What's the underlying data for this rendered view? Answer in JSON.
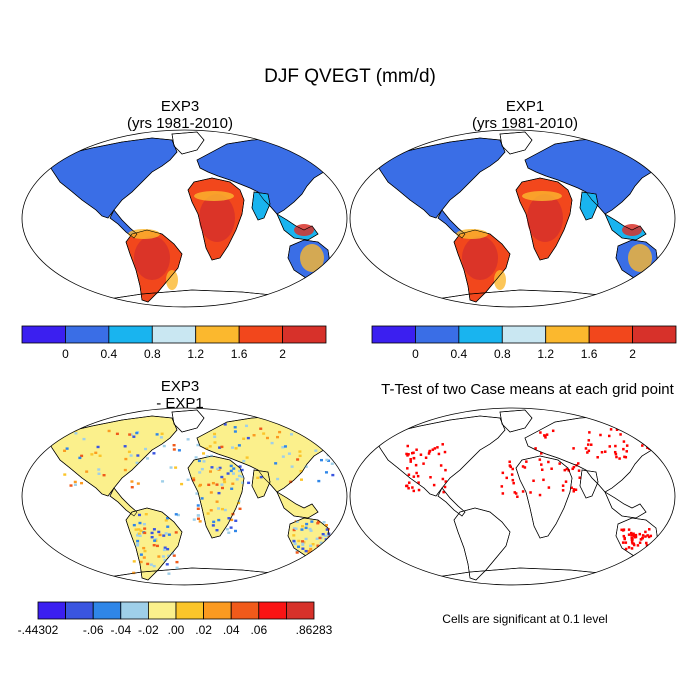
{
  "figure": {
    "title": "DJF QVEGT (mm/d)"
  },
  "panels": [
    {
      "id": "exp3",
      "title_line1": "EXP3",
      "title_line2": "(yrs 1981-2010)"
    },
    {
      "id": "exp1",
      "title_line1": "EXP1",
      "title_line2": "(yrs 1981-2010)"
    },
    {
      "id": "diff",
      "title_line1": "EXP3",
      "title_line2": " - EXP1"
    },
    {
      "id": "ttest",
      "title_line1": "T-Test of two Case means at each grid point",
      "title_line2": ""
    }
  ],
  "colorbars": {
    "mean": {
      "colors": [
        "#3b1ff0",
        "#3a6ee6",
        "#19b4ef",
        "#c9e7f2",
        "#fbb82e",
        "#f2471c",
        "#d7312a"
      ],
      "labels": [
        "0",
        "0.4",
        "0.8",
        "1.2",
        "1.6",
        "2"
      ]
    },
    "diff": {
      "colors": [
        "#3b1ff0",
        "#3a55e0",
        "#2f86e8",
        "#9fcfe9",
        "#fbf08c",
        "#fbc52a",
        "#fb9a20",
        "#f05a1a",
        "#fa1414",
        "#d7312a"
      ],
      "labels": [
        "-.44302",
        "-.06",
        "-.04",
        "-.02",
        ".00",
        ".02",
        ".04",
        ".06",
        ".86283"
      ]
    }
  },
  "significance_note": "Cells are significant at 0.1 level",
  "palette": {
    "land_cold": "#3a6ee6",
    "land_transition": "#19b4ef",
    "land_warm": "#f2471c",
    "land_hot": "#d7312a",
    "sig": "#ff0000",
    "diff_base": "#fbf08c"
  }
}
